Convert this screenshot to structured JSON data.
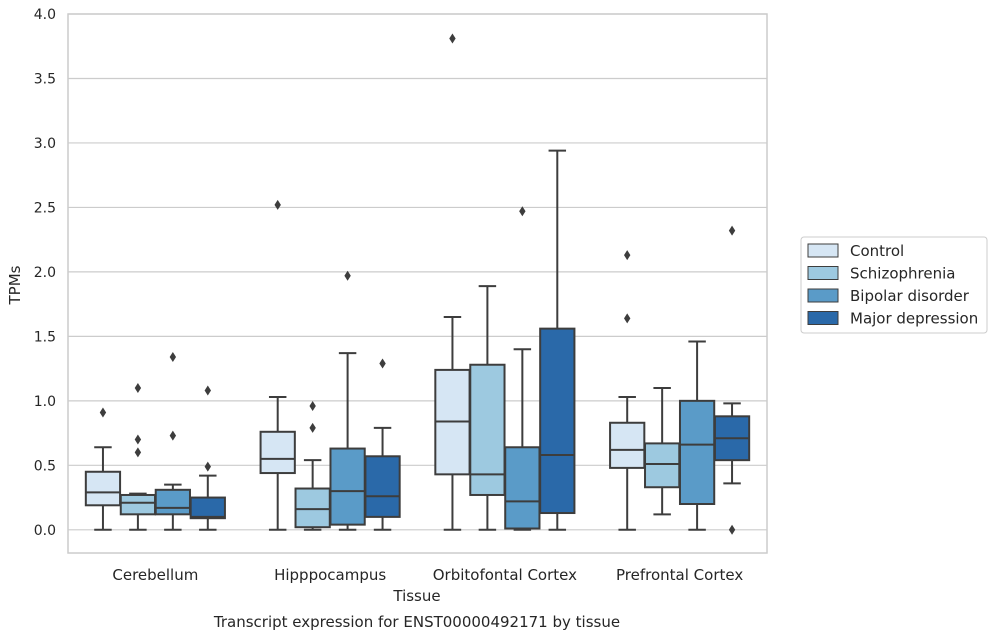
{
  "chart_data": {
    "type": "box",
    "title": "",
    "xlabel": "Tissue",
    "ylabel": "TPMs",
    "caption": "Transcript expression for ENST00000492171 by tissue",
    "ylim": [
      -0.18,
      4.0
    ],
    "yticks": [
      "0.0",
      "0.5",
      "1.0",
      "1.5",
      "2.0",
      "2.5",
      "3.0",
      "3.5",
      "4.0"
    ],
    "grid": true,
    "legend_position": "right",
    "categories": [
      "Cerebellum",
      "Hipppocampus",
      "Orbitofontal Cortex",
      "Prefrontal Cortex"
    ],
    "series": [
      {
        "name": "Control",
        "color": "#d6e6f4",
        "boxes": [
          {
            "q1": 0.19,
            "median": 0.29,
            "q3": 0.45,
            "whisker_low": 0.0,
            "whisker_high": 0.64,
            "outliers": [
              0.91
            ]
          },
          {
            "q1": 0.44,
            "median": 0.55,
            "q3": 0.76,
            "whisker_low": 0.0,
            "whisker_high": 1.03,
            "outliers": [
              2.52
            ]
          },
          {
            "q1": 0.43,
            "median": 0.84,
            "q3": 1.24,
            "whisker_low": 0.0,
            "whisker_high": 1.65,
            "outliers": [
              3.81
            ]
          },
          {
            "q1": 0.48,
            "median": 0.62,
            "q3": 0.83,
            "whisker_low": 0.0,
            "whisker_high": 1.03,
            "outliers": [
              1.64,
              2.13
            ]
          }
        ]
      },
      {
        "name": "Schizophrenia",
        "color": "#9dc9e0",
        "boxes": [
          {
            "q1": 0.12,
            "median": 0.21,
            "q3": 0.27,
            "whisker_low": 0.0,
            "whisker_high": 0.28,
            "outliers": [
              0.6,
              0.7,
              1.1
            ]
          },
          {
            "q1": 0.02,
            "median": 0.16,
            "q3": 0.32,
            "whisker_low": 0.0,
            "whisker_high": 0.54,
            "outliers": [
              0.79,
              0.96
            ]
          },
          {
            "q1": 0.27,
            "median": 0.43,
            "q3": 1.28,
            "whisker_low": 0.0,
            "whisker_high": 1.89,
            "outliers": []
          },
          {
            "q1": 0.33,
            "median": 0.51,
            "q3": 0.67,
            "whisker_low": 0.12,
            "whisker_high": 1.1,
            "outliers": []
          }
        ]
      },
      {
        "name": "Bipolar disorder",
        "color": "#5a9bc8",
        "boxes": [
          {
            "q1": 0.12,
            "median": 0.17,
            "q3": 0.31,
            "whisker_low": 0.0,
            "whisker_high": 0.35,
            "outliers": [
              0.73,
              1.34
            ]
          },
          {
            "q1": 0.04,
            "median": 0.3,
            "q3": 0.63,
            "whisker_low": 0.0,
            "whisker_high": 1.37,
            "outliers": [
              1.97
            ]
          },
          {
            "q1": 0.01,
            "median": 0.22,
            "q3": 0.64,
            "whisker_low": 0.0,
            "whisker_high": 1.4,
            "outliers": [
              2.47
            ]
          },
          {
            "q1": 0.2,
            "median": 0.66,
            "q3": 1.0,
            "whisker_low": 0.0,
            "whisker_high": 1.46,
            "outliers": []
          }
        ]
      },
      {
        "name": "Major depression",
        "color": "#2a69a9",
        "boxes": [
          {
            "q1": 0.09,
            "median": 0.1,
            "q3": 0.25,
            "whisker_low": 0.0,
            "whisker_high": 0.42,
            "outliers": [
              0.49,
              1.08
            ]
          },
          {
            "q1": 0.1,
            "median": 0.26,
            "q3": 0.57,
            "whisker_low": 0.0,
            "whisker_high": 0.79,
            "outliers": [
              1.29
            ]
          },
          {
            "q1": 0.13,
            "median": 0.58,
            "q3": 1.56,
            "whisker_low": 0.0,
            "whisker_high": 2.94,
            "outliers": []
          },
          {
            "q1": 0.54,
            "median": 0.71,
            "q3": 0.88,
            "whisker_low": 0.36,
            "whisker_high": 0.98,
            "outliers": [
              0.0,
              2.32
            ]
          }
        ]
      }
    ]
  }
}
